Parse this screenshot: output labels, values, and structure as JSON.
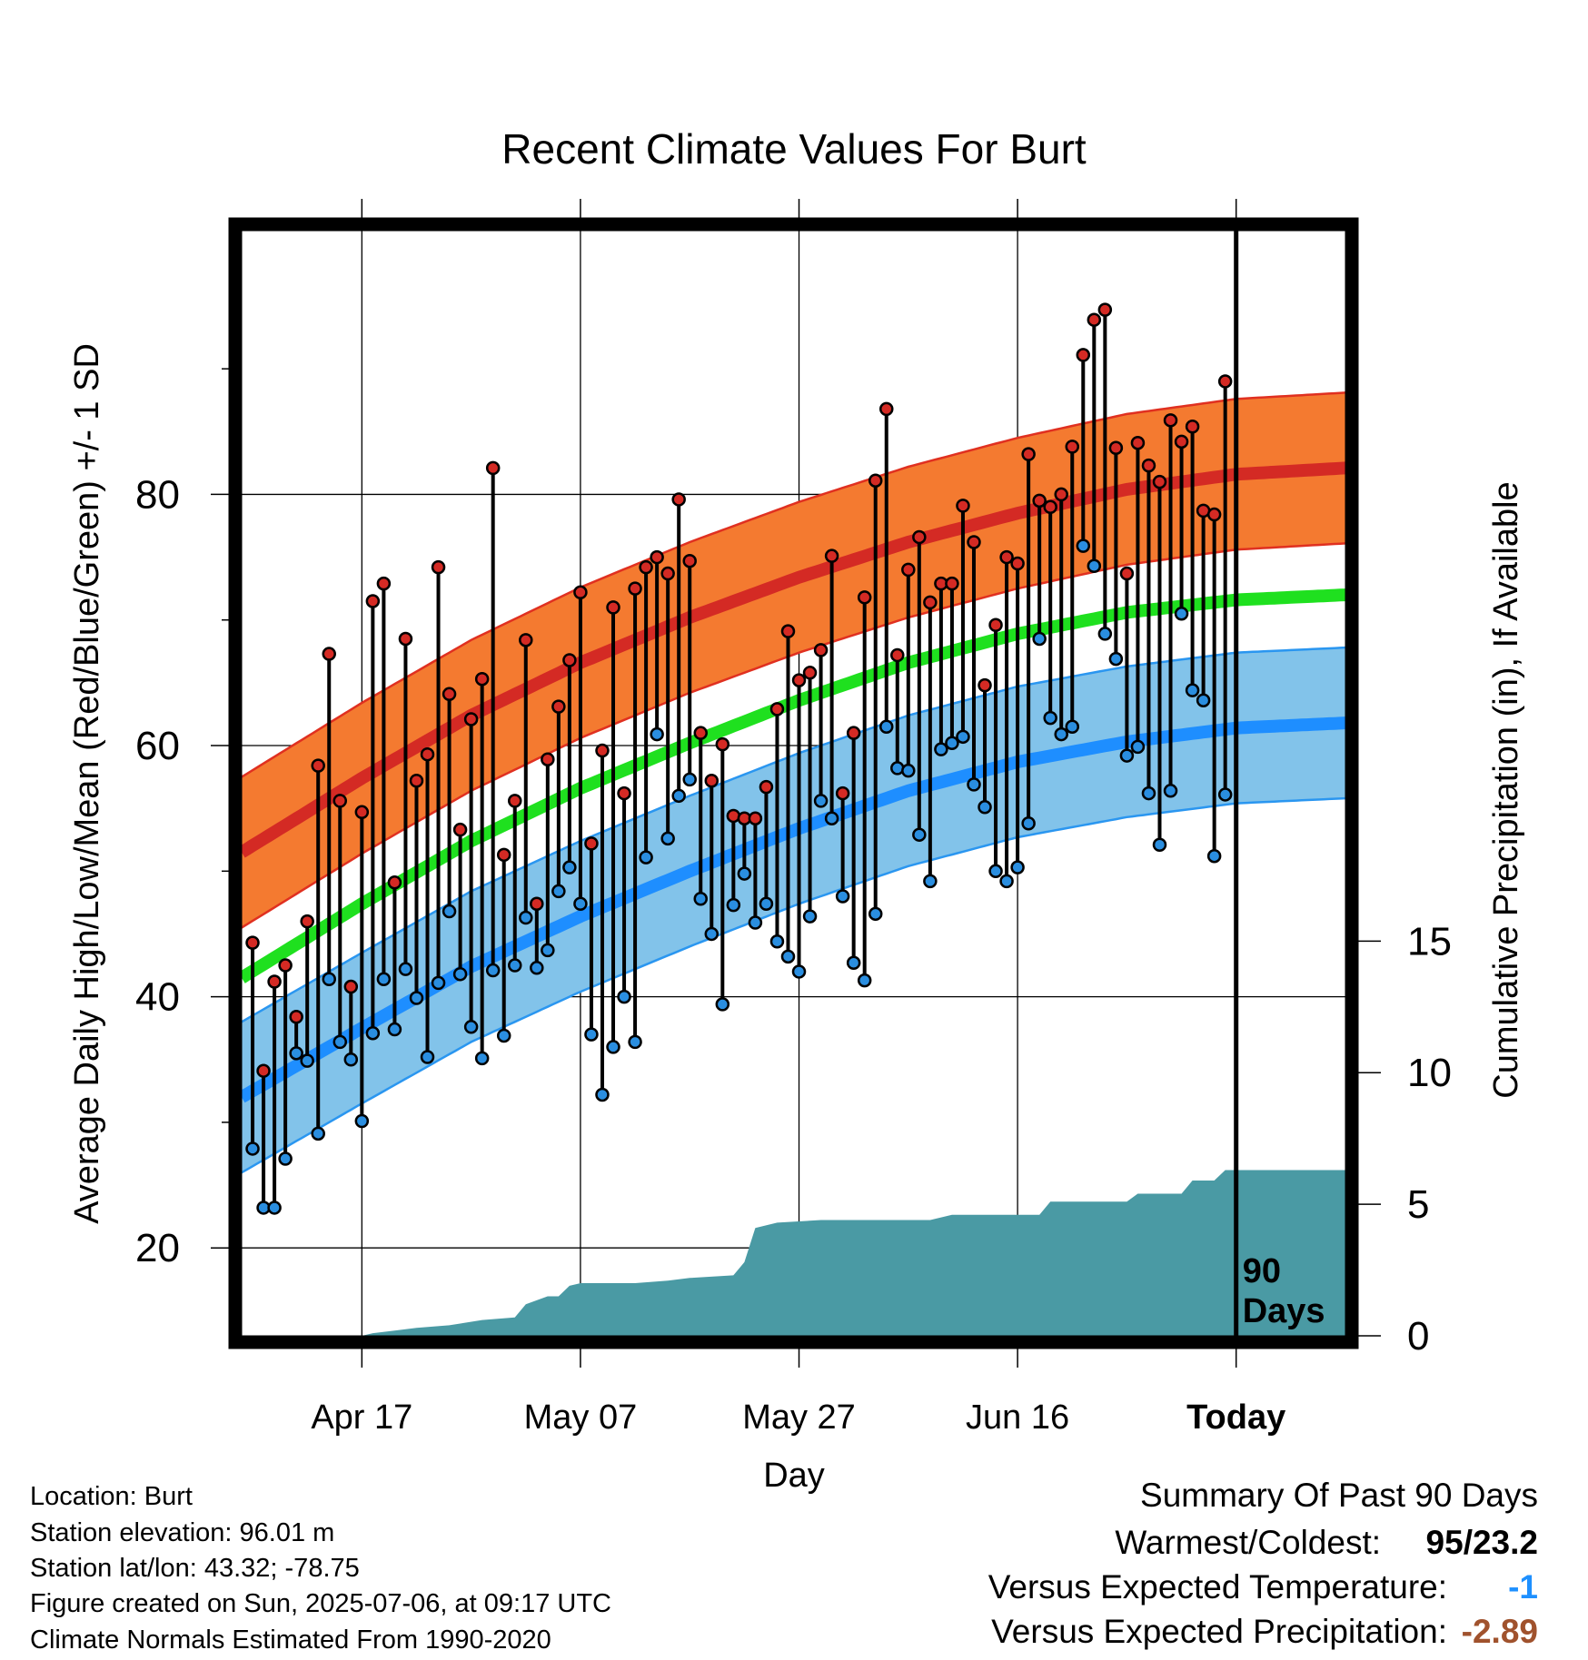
{
  "chart_data": {
    "type": "climate-range",
    "title": "Recent Climate Values For Burt",
    "xlabel": "Day",
    "ylabel_left": "Average Daily High/Low/Mean (Red/Blue/Green) +/- 1 SD",
    "ylabel_right": "Cumulative Precipitation (in), If Available",
    "x_tick_labels": [
      "Apr 17",
      "May 07",
      "May 27",
      "Jun 16",
      "Today"
    ],
    "x_tick_days": [
      10,
      30,
      50,
      70,
      90
    ],
    "xlim": [
      -1,
      100
    ],
    "ylim_left": [
      13,
      101
    ],
    "y_ticks_left": [
      20,
      40,
      60,
      80
    ],
    "y_ticks_right": [
      0,
      5,
      10,
      15
    ],
    "ylim_right": [
      0,
      42
    ],
    "today_day": 90,
    "today_label_line1": "90",
    "today_label_line2": "Days",
    "normal_high": [
      [
        -1,
        51.5
      ],
      [
        10,
        57.4
      ],
      [
        20,
        62.4
      ],
      [
        30,
        66.6
      ],
      [
        40,
        70.2
      ],
      [
        50,
        73.4
      ],
      [
        60,
        76.2
      ],
      [
        70,
        78.5
      ],
      [
        80,
        80.4
      ],
      [
        90,
        81.6
      ],
      [
        100,
        82.1
      ]
    ],
    "normal_high_sd": 6.0,
    "normal_mean": [
      [
        -1,
        41.5
      ],
      [
        10,
        47.4
      ],
      [
        20,
        52.4
      ],
      [
        30,
        56.6
      ],
      [
        40,
        60.2
      ],
      [
        50,
        63.6
      ],
      [
        60,
        66.6
      ],
      [
        70,
        68.9
      ],
      [
        80,
        70.6
      ],
      [
        90,
        71.6
      ],
      [
        100,
        72.0
      ]
    ],
    "normal_low": [
      [
        -1,
        32.0
      ],
      [
        10,
        37.5
      ],
      [
        20,
        42.4
      ],
      [
        30,
        46.4
      ],
      [
        40,
        50.0
      ],
      [
        50,
        53.4
      ],
      [
        60,
        56.4
      ],
      [
        70,
        58.7
      ],
      [
        80,
        60.3
      ],
      [
        90,
        61.4
      ],
      [
        100,
        61.8
      ]
    ],
    "normal_low_sd": 6.0,
    "daily_high": [
      44.3,
      34.1,
      41.2,
      42.5,
      38.4,
      46.0,
      58.4,
      67.3,
      55.6,
      40.8,
      54.7,
      71.5,
      72.9,
      49.1,
      68.5,
      57.2,
      59.3,
      74.2,
      64.1,
      53.3,
      62.1,
      65.3,
      82.1,
      51.3,
      55.6,
      68.4,
      47.4,
      58.9,
      63.1,
      66.8,
      72.2,
      52.2,
      59.6,
      71.0,
      56.2,
      72.5,
      74.2,
      75.0,
      73.7,
      79.6,
      74.7,
      61.0,
      57.2,
      60.1,
      54.4,
      54.2,
      54.2,
      56.7,
      62.9,
      69.1,
      65.2,
      65.8,
      67.6,
      75.1,
      56.2,
      61.0,
      71.8,
      81.1,
      86.8,
      67.2,
      74.0,
      76.6,
      71.4,
      72.9,
      72.9,
      79.1,
      76.2,
      64.8,
      69.6,
      75.0,
      74.5,
      83.2,
      79.5,
      79.0,
      80.0,
      83.8,
      91.1,
      93.9,
      94.7,
      83.7,
      73.7,
      84.1,
      82.3,
      81.0,
      85.9,
      84.2,
      85.4,
      78.7,
      78.4,
      89.0
    ],
    "daily_low": [
      27.9,
      23.2,
      23.2,
      27.1,
      35.5,
      34.9,
      29.1,
      41.4,
      36.4,
      35.0,
      30.1,
      37.1,
      41.4,
      37.4,
      42.2,
      39.9,
      35.2,
      41.1,
      46.8,
      41.8,
      37.6,
      35.1,
      42.1,
      36.9,
      42.5,
      46.3,
      42.3,
      43.7,
      48.4,
      50.3,
      47.4,
      37.0,
      32.2,
      36.0,
      40.0,
      36.4,
      51.1,
      60.9,
      52.6,
      56.0,
      57.3,
      47.8,
      45.0,
      39.4,
      47.3,
      49.8,
      45.9,
      47.4,
      44.4,
      43.2,
      42.0,
      46.4,
      55.6,
      54.2,
      48.0,
      42.7,
      41.3,
      46.6,
      61.5,
      58.2,
      58.0,
      52.9,
      49.2,
      59.7,
      60.2,
      60.7,
      56.9,
      55.1,
      50.0,
      49.2,
      50.3,
      53.8,
      68.5,
      62.2,
      60.9,
      61.5,
      75.9,
      74.3,
      68.9,
      66.9,
      59.2,
      59.9,
      56.2,
      52.1,
      56.4,
      70.5,
      64.4,
      63.6,
      51.2,
      56.1
    ],
    "cumulative_precipitation": [
      [
        -1,
        0
      ],
      [
        10,
        0
      ],
      [
        11,
        0.1
      ],
      [
        13,
        0.2
      ],
      [
        15,
        0.3
      ],
      [
        18,
        0.4
      ],
      [
        21,
        0.6
      ],
      [
        24,
        0.7
      ],
      [
        25,
        1.2
      ],
      [
        27,
        1.5
      ],
      [
        28,
        1.5
      ],
      [
        29,
        1.9
      ],
      [
        30,
        2.0
      ],
      [
        35,
        2.0
      ],
      [
        38,
        2.1
      ],
      [
        40,
        2.2
      ],
      [
        44,
        2.3
      ],
      [
        45,
        2.8
      ],
      [
        46,
        4.1
      ],
      [
        48,
        4.3
      ],
      [
        52,
        4.4
      ],
      [
        56,
        4.4
      ],
      [
        62,
        4.4
      ],
      [
        64,
        4.6
      ],
      [
        70,
        4.6
      ],
      [
        72,
        4.6
      ],
      [
        73,
        5.1
      ],
      [
        80,
        5.1
      ],
      [
        81,
        5.4
      ],
      [
        85,
        5.4
      ],
      [
        86,
        5.9
      ],
      [
        88,
        5.9
      ],
      [
        89,
        6.3
      ],
      [
        100,
        6.3
      ]
    ]
  },
  "info": {
    "location": "Location: Burt",
    "elevation": "Station elevation: 96.01 m",
    "latlon": "Station lat/lon: 43.32; -78.75",
    "created": "Figure created on Sun, 2025-07-06, at 09:17 UTC",
    "normals": "Climate Normals Estimated From 1990-2020"
  },
  "summary": {
    "title": "Summary Of Past 90 Days",
    "warmest_coldest_label": "Warmest/Coldest:",
    "warmest_coldest_value": "95/23.2",
    "temp_label": "Versus Expected Temperature:",
    "temp_value": "-1",
    "temp_color": "#1e90ff",
    "precip_label": "Versus Expected Precipitation:",
    "precip_value": "-2.89",
    "precip_color": "#a0522d"
  },
  "colors": {
    "high_band": "#f47a30",
    "high_line": "#d42a24",
    "high_band_edge": "#e03020",
    "low_band": "#82c3ea",
    "low_line": "#1e8eff",
    "low_band_edge": "#2a96f0",
    "mean_line": "#1fe01f",
    "precip_fill": "#4a9aa4",
    "high_dot": "#d42a24",
    "low_dot": "#2a8ee0"
  }
}
